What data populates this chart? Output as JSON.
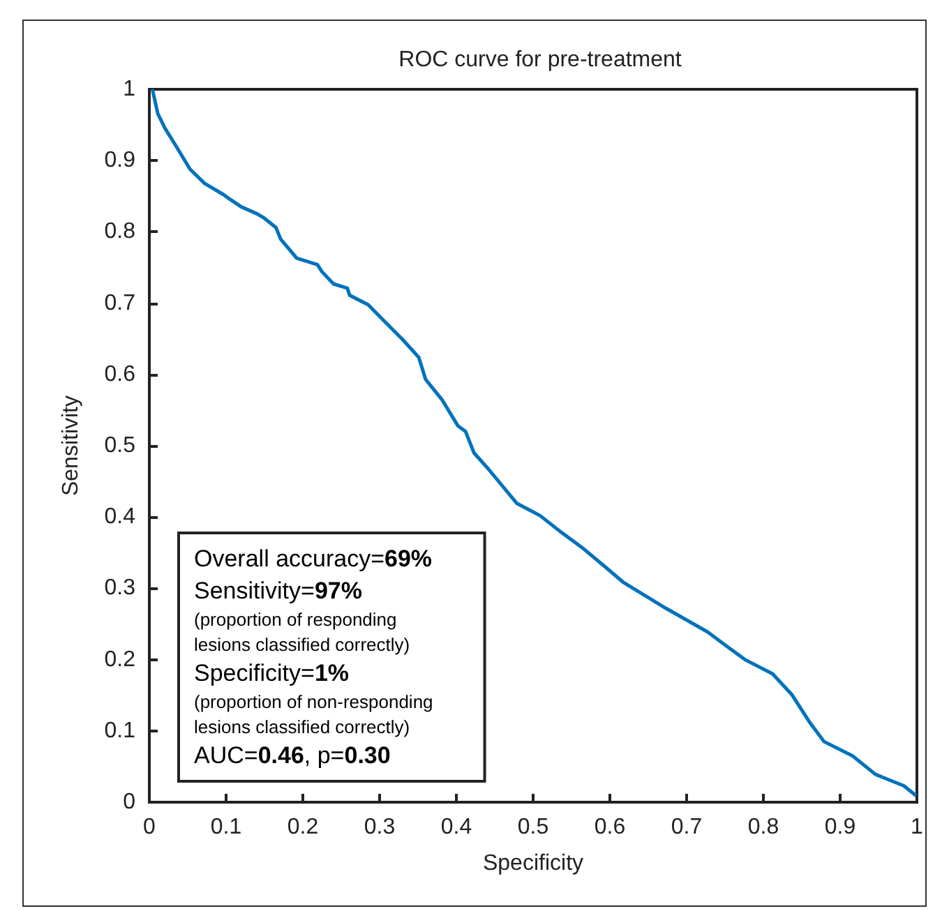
{
  "chart_data": {
    "type": "line",
    "title": "ROC curve for pre-treatment",
    "xlabel": "Specificity",
    "ylabel": "Sensitivity",
    "xlim": [
      0,
      1
    ],
    "ylim": [
      0,
      1
    ],
    "xticks": [
      0,
      0.1,
      0.2,
      0.3,
      0.4,
      0.5,
      0.6,
      0.7,
      0.8,
      0.9,
      1
    ],
    "yticks": [
      0,
      0.1,
      0.2,
      0.3,
      0.4,
      0.5,
      0.6,
      0.7,
      0.8,
      0.9,
      1
    ],
    "grid": false,
    "marker": "none",
    "line_style": "solid",
    "series": [
      {
        "color": "#0072bd",
        "x": [
          0.004,
          0.011,
          0.02,
          0.035,
          0.053,
          0.072,
          0.097,
          0.102,
          0.12,
          0.141,
          0.15,
          0.165,
          0.171,
          0.192,
          0.219,
          0.225,
          0.24,
          0.258,
          0.261,
          0.285,
          0.306,
          0.33,
          0.351,
          0.36,
          0.381,
          0.402,
          0.412,
          0.423,
          0.442,
          0.479,
          0.509,
          0.535,
          0.564,
          0.594,
          0.618,
          0.673,
          0.727,
          0.752,
          0.776,
          0.812,
          0.837,
          0.861,
          0.879,
          0.916,
          0.946,
          0.983,
          0.999
        ],
        "values": [
          1,
          0.966,
          0.946,
          0.92,
          0.888,
          0.868,
          0.852,
          0.848,
          0.835,
          0.825,
          0.819,
          0.806,
          0.79,
          0.763,
          0.754,
          0.744,
          0.727,
          0.721,
          0.711,
          0.698,
          0.675,
          0.649,
          0.624,
          0.593,
          0.565,
          0.528,
          0.52,
          0.49,
          0.467,
          0.419,
          0.402,
          0.38,
          0.357,
          0.33,
          0.308,
          0.272,
          0.239,
          0.219,
          0.2,
          0.18,
          0.151,
          0.111,
          0.085,
          0.065,
          0.039,
          0.023,
          0.009
        ]
      }
    ],
    "annotations": [
      "Overall accuracy=69%",
      "Sensitivity=97%\n(proportion of responding\nlesions classified correctly)",
      "Specificity=1%\n(proportion of non-responding\nlesions classified correctly)",
      "AUC=0.46, p=0.30"
    ]
  }
}
